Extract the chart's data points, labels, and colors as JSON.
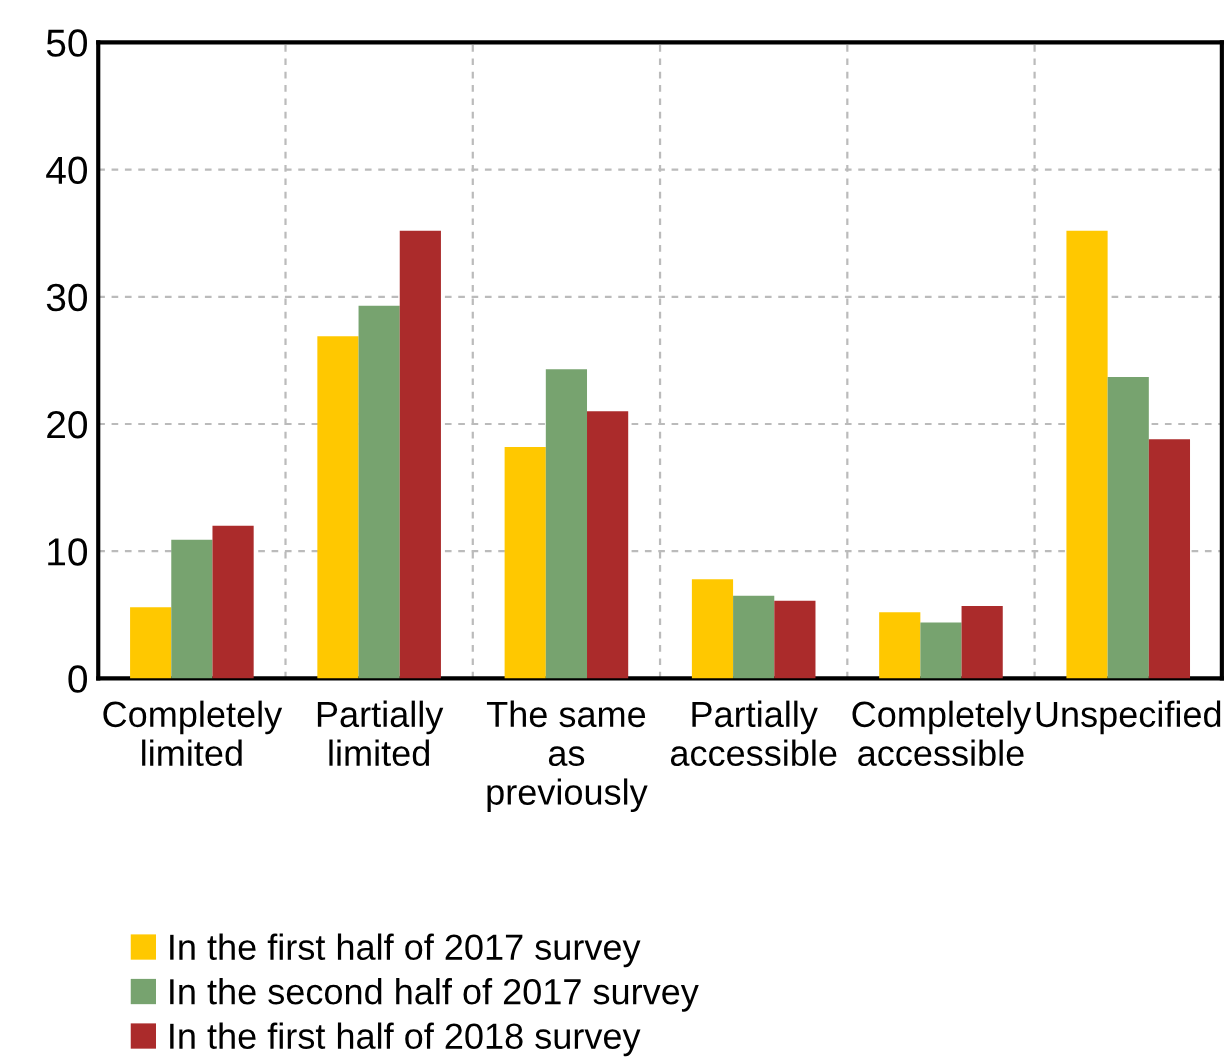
{
  "chart_data": {
    "type": "bar",
    "categories": [
      "Completely\nlimited",
      "Partially\nlimited",
      "The same\nas\npreviously",
      "Partially\naccessible",
      "Completely\naccessible",
      "Unspecified"
    ],
    "series": [
      {
        "name": "In the first half of 2017 survey",
        "color": "#ffc800",
        "values": [
          5.6,
          26.9,
          18.2,
          7.8,
          5.2,
          35.2
        ]
      },
      {
        "name": "In the second half of 2017 survey",
        "color": "#77a36f",
        "values": [
          10.9,
          29.3,
          24.3,
          6.5,
          4.4,
          23.7
        ]
      },
      {
        "name": "In the first half of 2018 survey",
        "color": "#ab2b2b",
        "values": [
          12.0,
          35.2,
          21.0,
          6.1,
          5.7,
          18.8
        ]
      }
    ],
    "ylim": [
      0,
      50
    ],
    "yticks": [
      0,
      10,
      20,
      30,
      40,
      50
    ],
    "grid": true,
    "legend": "bottom"
  }
}
